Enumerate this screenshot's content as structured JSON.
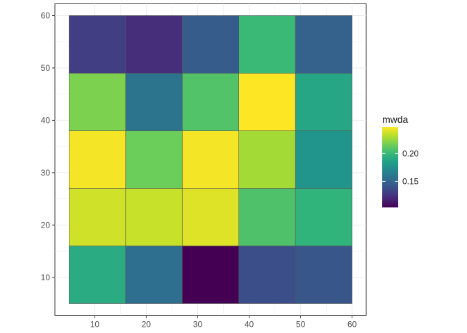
{
  "chart_data": {
    "type": "heatmap",
    "title": "",
    "xlabel": "",
    "ylabel": "",
    "xlim": [
      2.25,
      62.75
    ],
    "ylim": [
      2.75,
      62.25
    ],
    "x_ticks": [
      10,
      20,
      30,
      40,
      50,
      60
    ],
    "y_ticks": [
      10,
      20,
      30,
      40,
      50,
      60
    ],
    "grid": true,
    "x_edges": [
      5,
      16,
      27,
      38,
      49,
      60
    ],
    "y_edges": [
      5,
      16,
      27,
      38,
      49,
      60
    ],
    "cells": [
      [
        0.192,
        0.155,
        0.103,
        0.138,
        0.142
      ],
      [
        0.238,
        0.236,
        0.241,
        0.207,
        0.197
      ],
      [
        0.246,
        0.215,
        0.246,
        0.228,
        0.178
      ],
      [
        0.219,
        0.158,
        0.208,
        0.248,
        0.189
      ],
      [
        0.13,
        0.122,
        0.145,
        0.201,
        0.148
      ]
    ],
    "legend": {
      "title": "mwda",
      "position": "right",
      "min": 0.103,
      "max": 0.248,
      "ticks": [
        0.15,
        0.2
      ],
      "tick_labels": [
        "0.15",
        "0.20"
      ]
    },
    "colors": {
      "viridis": [
        "#440154",
        "#482878",
        "#3e4989",
        "#31688e",
        "#26828e",
        "#1f9e89",
        "#35b779",
        "#6ece58",
        "#b5de2b",
        "#fde725"
      ]
    }
  }
}
